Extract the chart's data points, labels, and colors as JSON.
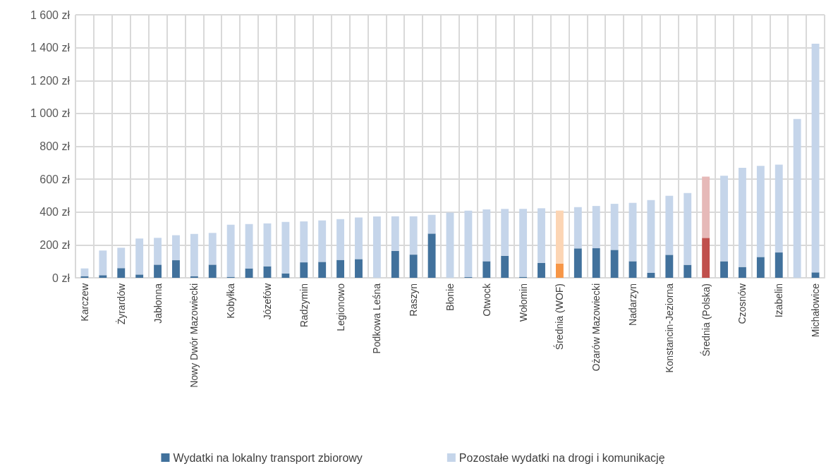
{
  "chart_data": {
    "type": "bar",
    "stacked": true,
    "categories": [
      "Karczew",
      null,
      "Żyrardów",
      null,
      "Jabłonna",
      null,
      "Nowy Dwór Mazowiecki",
      null,
      "Kobyłka",
      null,
      "Józefów",
      null,
      "Radzymin",
      null,
      "Legionowo",
      null,
      "Podkowa Leśna",
      null,
      "Raszyn",
      null,
      "Błonie",
      null,
      "Otwock",
      null,
      "Wołomin",
      null,
      "Średnia (WOF)",
      null,
      "Ożarów Mazowiecki",
      null,
      "Nadarzyn",
      null,
      "Konstancin-Jeziorna",
      null,
      "Średnia (Polska)",
      null,
      "Czosnów",
      null,
      "Izabelin",
      null,
      "Michałowice"
    ],
    "series": [
      {
        "name": "Wydatki na lokalny transport zbiorowy",
        "color": "#41719c",
        "colors": [
          "#41719c",
          "#41719c",
          "#41719c",
          "#41719c",
          "#41719c",
          "#41719c",
          "#41719c",
          "#41719c",
          "#41719c",
          "#41719c",
          "#41719c",
          "#41719c",
          "#41719c",
          "#41719c",
          "#41719c",
          "#41719c",
          "#41719c",
          "#41719c",
          "#41719c",
          "#41719c",
          "#41719c",
          "#41719c",
          "#41719c",
          "#41719c",
          "#41719c",
          "#41719c",
          "#f79646",
          "#41719c",
          "#41719c",
          "#41719c",
          "#41719c",
          "#41719c",
          "#41719c",
          "#41719c",
          "#c0504d",
          "#41719c",
          "#41719c",
          "#41719c",
          "#41719c",
          "#41719c",
          "#41719c"
        ],
        "values": [
          10,
          16,
          59,
          20,
          80,
          107,
          10,
          80,
          6,
          57,
          70,
          27,
          94,
          97,
          109,
          114,
          0,
          164,
          141,
          269,
          0,
          4,
          101,
          134,
          6,
          90,
          87,
          179,
          180,
          170,
          101,
          30,
          140,
          79,
          243,
          101,
          66,
          127,
          154,
          0,
          33
        ]
      },
      {
        "name": "Pozostałe wydatki na drogi i komunikację",
        "color": "#c5d5ea",
        "colors": [
          "#c5d5ea",
          "#c5d5ea",
          "#c5d5ea",
          "#c5d5ea",
          "#c5d5ea",
          "#c5d5ea",
          "#c5d5ea",
          "#c5d5ea",
          "#c5d5ea",
          "#c5d5ea",
          "#c5d5ea",
          "#c5d5ea",
          "#c5d5ea",
          "#c5d5ea",
          "#c5d5ea",
          "#c5d5ea",
          "#c5d5ea",
          "#c5d5ea",
          "#c5d5ea",
          "#c5d5ea",
          "#c5d5ea",
          "#c5d5ea",
          "#c5d5ea",
          "#c5d5ea",
          "#c5d5ea",
          "#c5d5ea",
          "#fcd5b4",
          "#c5d5ea",
          "#c5d5ea",
          "#c5d5ea",
          "#c5d5ea",
          "#c5d5ea",
          "#c5d5ea",
          "#c5d5ea",
          "#e6b9b8",
          "#c5d5ea",
          "#c5d5ea",
          "#c5d5ea",
          "#c5d5ea",
          "#c5d5ea",
          "#c5d5ea"
        ],
        "values": [
          47,
          150,
          124,
          219,
          163,
          152,
          257,
          193,
          317,
          270,
          261,
          313,
          249,
          252,
          248,
          253,
          373,
          210,
          233,
          114,
          397,
          405,
          315,
          285,
          413,
          333,
          322,
          251,
          257,
          280,
          355,
          443,
          359,
          437,
          373,
          520,
          603,
          554,
          535,
          966,
          1391
        ]
      }
    ],
    "ylim": [
      0,
      1600
    ],
    "yticks": [
      {
        "value": 0,
        "label": "0 zł"
      },
      {
        "value": 200,
        "label": "200 zł"
      },
      {
        "value": 400,
        "label": "400 zł"
      },
      {
        "value": 600,
        "label": "600 zł"
      },
      {
        "value": 800,
        "label": "800 zł"
      },
      {
        "value": 1000,
        "label": "1 000 zł"
      },
      {
        "value": 1200,
        "label": "1 200 zł"
      },
      {
        "value": 1400,
        "label": "1 400 zł"
      },
      {
        "value": 1600,
        "label": "1 600 zł"
      }
    ],
    "grid": true,
    "legend": "bottom"
  }
}
